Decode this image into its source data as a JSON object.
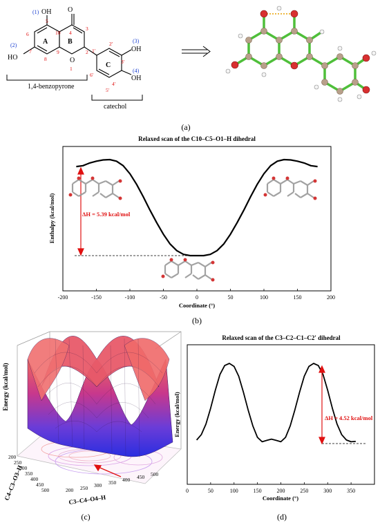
{
  "panel_a": {
    "atoms": {
      "oh_top": "OH",
      "oh_left": "HO",
      "oh_right3": "OH",
      "oh_right4": "OH",
      "o_carbonyl": "O",
      "o_ring": "O"
    },
    "ring_labels": {
      "A": "A",
      "B": "B",
      "C": "C"
    },
    "hydroxyl_ids": {
      "h1": "(1)",
      "h2": "(2)",
      "h3": "(3)",
      "h4": "(4)"
    },
    "numbers": {
      "n5": "5",
      "n10": "10",
      "n4": "4",
      "n3": "3",
      "n6": "6",
      "n7": "7",
      "n8": "8",
      "n9": "9",
      "n2": "2",
      "n1": "1",
      "n1p": "1'",
      "n2p": "2'",
      "n3p": "3'",
      "n4p": "4'",
      "n5p": "5'",
      "n6p": "6'"
    },
    "bracket_left": "1,4-benzopyrone",
    "bracket_right": "catechol",
    "caption": "(a)"
  },
  "panel_b": {
    "title": "Relaxed scan of the C10–C5–O1–H dihedral",
    "ylabel": "Enthalpy (kcal/mol)",
    "xlabel": "Coordinate (°)",
    "annotation": "ΔH = 5.39 kcal/mol",
    "caption": "(b)"
  },
  "panel_c": {
    "zlabel": "Energy (kcal/mol)",
    "xlabel": "C3–C4–O4–H",
    "ylabel": "C4–C3–O3–H",
    "caption": "(c)",
    "ticks_x": [
      "200",
      "250",
      "300",
      "350",
      "400",
      "450",
      "500"
    ],
    "ticks_y": [
      "200",
      "250",
      "300",
      "350",
      "400",
      "450",
      "500"
    ]
  },
  "panel_d": {
    "title": "Relaxed scan of the C3–C2–C1–C2' dihedral",
    "ylabel": "Energy (kcal/mol)",
    "xlabel": "Coordinate (°)",
    "annotation": "ΔH = 4.52 kcal/mol",
    "caption": "(d)"
  },
  "chart_data": [
    {
      "type": "line",
      "title": "Relaxed scan of the C10–C5–O1–H dihedral",
      "xlabel": "Coordinate (°)",
      "ylabel": "Enthalpy (kcal/mol)",
      "xlim": [
        -200,
        200
      ],
      "x_ticks": [
        -200,
        -150,
        -100,
        -50,
        0,
        50,
        100,
        150,
        200
      ],
      "series": [
        {
          "x": [
            -180,
            -170,
            -160,
            -150,
            -140,
            -130,
            -120,
            -110,
            -100,
            -90,
            -80,
            -70,
            -60,
            -50,
            -40,
            -30,
            -20,
            -10,
            0,
            10,
            20,
            30,
            40,
            50,
            60,
            70,
            80,
            90,
            100,
            110,
            120,
            130,
            140,
            150,
            160,
            170,
            180
          ],
          "y": [
            5.0,
            5.05,
            5.2,
            5.3,
            5.37,
            5.39,
            5.3,
            5.05,
            4.6,
            4.0,
            3.3,
            2.55,
            1.85,
            1.2,
            0.65,
            0.28,
            0.07,
            0.0,
            0.0,
            0.0,
            0.07,
            0.28,
            0.65,
            1.2,
            1.85,
            2.55,
            3.3,
            4.0,
            4.6,
            5.05,
            5.3,
            5.39,
            5.37,
            5.3,
            5.2,
            5.05,
            5.0
          ]
        }
      ],
      "annotations": [
        "ΔH = 5.39 kcal/mol"
      ]
    },
    {
      "type": "line",
      "title": "Relaxed scan of the C3–C2–C1–C2' dihedral",
      "xlabel": "Coordinate (°)",
      "ylabel": "Energy (kcal/mol)",
      "xlim": [
        0,
        400
      ],
      "x_ticks": [
        0,
        50,
        100,
        150,
        200,
        250,
        300,
        350
      ],
      "series": [
        {
          "x": [
            20,
            30,
            40,
            50,
            60,
            70,
            80,
            90,
            100,
            110,
            120,
            130,
            140,
            150,
            160,
            170,
            180,
            190,
            200,
            210,
            220,
            230,
            240,
            250,
            260,
            270,
            280,
            290,
            300,
            310,
            320,
            330,
            340,
            350,
            360
          ],
          "y": [
            0.2,
            0.5,
            1.1,
            2.0,
            3.0,
            3.9,
            4.4,
            4.52,
            4.35,
            3.8,
            2.9,
            1.9,
            1.0,
            0.35,
            0.1,
            0.18,
            0.25,
            0.18,
            0.1,
            0.35,
            1.0,
            1.9,
            2.9,
            3.8,
            4.35,
            4.52,
            4.4,
            3.9,
            3.0,
            2.0,
            1.1,
            0.5,
            0.2,
            0.1,
            0.12
          ]
        }
      ],
      "annotations": [
        "ΔH = 4.52 kcal/mol"
      ]
    }
  ]
}
